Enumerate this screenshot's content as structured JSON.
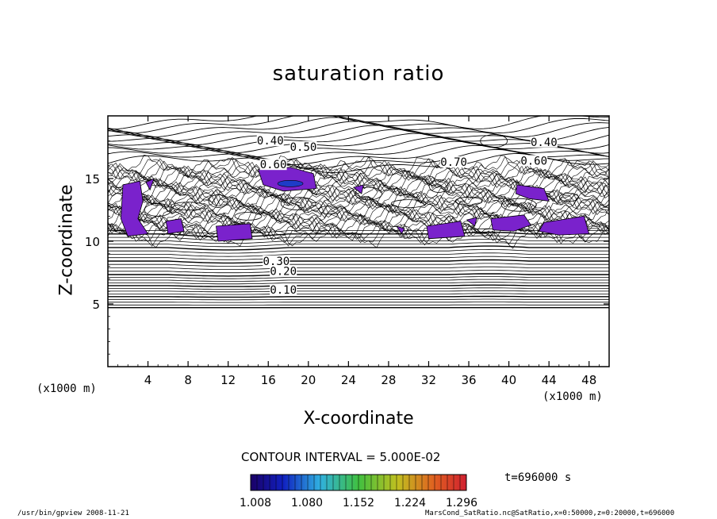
{
  "chart_data": {
    "type": "contour",
    "title": "saturation ratio",
    "xlabel": "X-coordinate",
    "ylabel": "Z-coordinate",
    "x_unit_label": "(x1000 m)",
    "xlim": [
      0,
      50
    ],
    "ylim": [
      0,
      20
    ],
    "x_ticks": [
      4,
      8,
      12,
      16,
      20,
      24,
      28,
      32,
      36,
      40,
      44,
      48
    ],
    "y_ticks": [
      5,
      10,
      15
    ],
    "contour_interval_label": "CONTOUR INTERVAL = 5.000E-02",
    "contour_labels": [
      {
        "text": "0.10",
        "x": 17.5,
        "z": 6.0
      },
      {
        "text": "0.20",
        "x": 17.5,
        "z": 7.5
      },
      {
        "text": "0.30",
        "x": 16.8,
        "z": 8.3
      },
      {
        "text": "0.40",
        "x": 16.2,
        "z": 17.9
      },
      {
        "text": "0.50",
        "x": 19.5,
        "z": 17.4
      },
      {
        "text": "0.60",
        "x": 16.5,
        "z": 16.0
      },
      {
        "text": "0.70",
        "x": 34.5,
        "z": 16.2
      },
      {
        "text": "0.40",
        "x": 43.5,
        "z": 17.8
      },
      {
        "text": "0.60",
        "x": 42.5,
        "z": 16.3
      }
    ],
    "filled_levels": [
      1.008,
      1.08,
      1.152,
      1.224,
      1.296
    ],
    "colorbar_labels": [
      "1.008",
      "1.080",
      "1.152",
      "1.224",
      "1.296"
    ],
    "colors": {
      "supersaturated": "#7a22cc",
      "core": "#1e3cc8",
      "line": "#000000"
    }
  },
  "time_label": "t=696000 s",
  "footer_left": "/usr/bin/gpview   2008-11-21",
  "footer_right": "MarsCond_SatRatio.nc@SatRatio,x=0:50000,z=0:20000,t=696000"
}
